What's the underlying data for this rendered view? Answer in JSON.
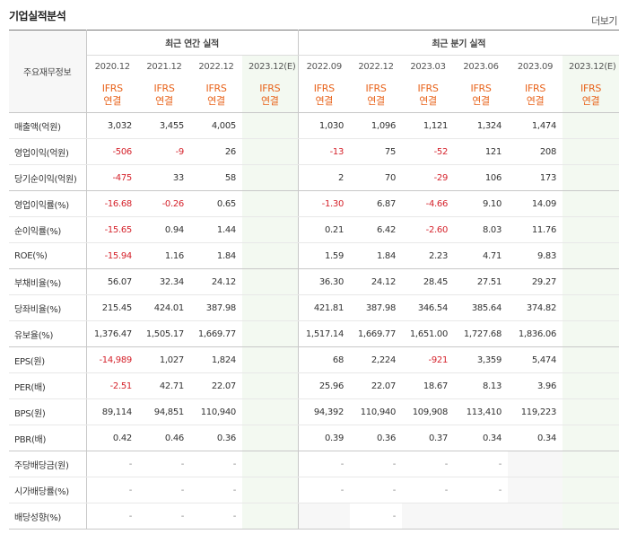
{
  "header": {
    "title": "기업실적분석",
    "more_label": "더보기"
  },
  "table": {
    "corner_label": "주요재무정보",
    "annual_label": "최근 연간 실적",
    "quarter_label": "최근 분기 실적",
    "periods": [
      "2020.12",
      "2021.12",
      "2022.12",
      "2023.12(E)",
      "2022.09",
      "2022.12",
      "2023.03",
      "2023.06",
      "2023.09",
      "2023.12(E)"
    ],
    "ifrs_label": "IFRS",
    "basis_label": "연결",
    "rows": [
      {
        "label": "매출액(억원)",
        "values": [
          "3,032",
          "3,455",
          "4,005",
          "",
          "1,030",
          "1,096",
          "1,121",
          "1,324",
          "1,474",
          ""
        ]
      },
      {
        "label": "영업이익(억원)",
        "values": [
          "-506",
          "-9",
          "26",
          "",
          "-13",
          "75",
          "-52",
          "121",
          "208",
          ""
        ]
      },
      {
        "label": "당기순이익(억원)",
        "values": [
          "-475",
          "33",
          "58",
          "",
          "2",
          "70",
          "-29",
          "106",
          "173",
          ""
        ]
      },
      {
        "label": "영업이익률(%)",
        "values": [
          "-16.68",
          "-0.26",
          "0.65",
          "",
          "-1.30",
          "6.87",
          "-4.66",
          "9.10",
          "14.09",
          ""
        ]
      },
      {
        "label": "순이익률(%)",
        "values": [
          "-15.65",
          "0.94",
          "1.44",
          "",
          "0.21",
          "6.42",
          "-2.60",
          "8.03",
          "11.76",
          ""
        ]
      },
      {
        "label": "ROE(%)",
        "values": [
          "-15.94",
          "1.16",
          "1.84",
          "",
          "1.59",
          "1.84",
          "2.23",
          "4.71",
          "9.83",
          ""
        ]
      },
      {
        "label": "부채비율(%)",
        "values": [
          "56.07",
          "32.34",
          "24.12",
          "",
          "36.30",
          "24.12",
          "28.45",
          "27.51",
          "29.27",
          ""
        ]
      },
      {
        "label": "당좌비율(%)",
        "values": [
          "215.45",
          "424.01",
          "387.98",
          "",
          "421.81",
          "387.98",
          "346.54",
          "385.64",
          "374.82",
          ""
        ]
      },
      {
        "label": "유보율(%)",
        "values": [
          "1,376.47",
          "1,505.17",
          "1,669.77",
          "",
          "1,517.14",
          "1,669.77",
          "1,651.00",
          "1,727.68",
          "1,836.06",
          ""
        ]
      },
      {
        "label": "EPS(원)",
        "values": [
          "-14,989",
          "1,027",
          "1,824",
          "",
          "68",
          "2,224",
          "-921",
          "3,359",
          "5,474",
          ""
        ]
      },
      {
        "label": "PER(배)",
        "values": [
          "-2.51",
          "42.71",
          "22.07",
          "",
          "25.96",
          "22.07",
          "18.67",
          "8.13",
          "3.96",
          ""
        ]
      },
      {
        "label": "BPS(원)",
        "values": [
          "89,114",
          "94,851",
          "110,940",
          "",
          "94,392",
          "110,940",
          "109,908",
          "113,410",
          "119,223",
          ""
        ]
      },
      {
        "label": "PBR(배)",
        "values": [
          "0.42",
          "0.46",
          "0.36",
          "",
          "0.39",
          "0.36",
          "0.37",
          "0.34",
          "0.34",
          ""
        ]
      },
      {
        "label": "주당배당금(원)",
        "values": [
          "-",
          "-",
          "-",
          "",
          "-",
          "-",
          "-",
          "-",
          "",
          ""
        ]
      },
      {
        "label": "시가배당률(%)",
        "values": [
          "-",
          "-",
          "-",
          "",
          "-",
          "-",
          "-",
          "-",
          "",
          ""
        ]
      },
      {
        "label": "배당성향(%)",
        "values": [
          "-",
          "-",
          "-",
          "",
          "",
          "-",
          "",
          "",
          "",
          ""
        ]
      }
    ]
  }
}
